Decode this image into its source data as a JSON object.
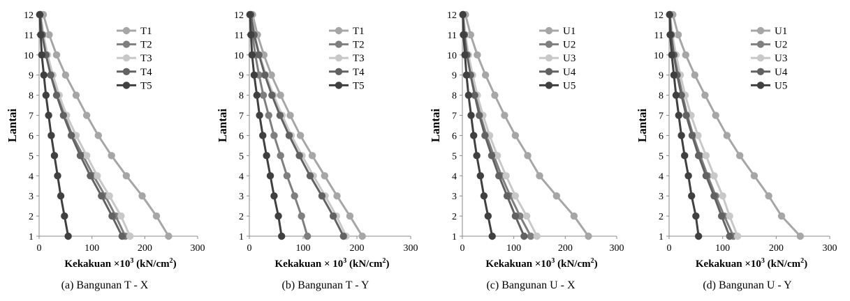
{
  "chart_data": [
    {
      "type": "line",
      "caption": "(a) Bangunan T - X",
      "ylabel": "Lantai",
      "xlabel": "Kekakuan ×10",
      "xlabel_exp": "3",
      "xlabel_unit": " (kN/cm",
      "xlabel_unit_exp": "2",
      "xlabel_end": ")",
      "xlim": [
        0,
        300
      ],
      "x_ticks": [
        "0",
        "100",
        "200",
        "300"
      ],
      "ylim": [
        1,
        12
      ],
      "y_ticks": [
        "1",
        "2",
        "3",
        "4",
        "5",
        "6",
        "7",
        "8",
        "9",
        "10",
        "11",
        "12"
      ],
      "legend_position": "top-right",
      "series": [
        {
          "name": "T1",
          "color": "#a6a6a6",
          "x": [
            245,
            222,
            195,
            165,
            137,
            112,
            90,
            70,
            50,
            33,
            19,
            8
          ],
          "y": [
            1,
            2,
            3,
            4,
            5,
            6,
            7,
            8,
            9,
            10,
            11,
            12
          ]
        },
        {
          "name": "T2",
          "color": "#7f7f7f",
          "x": [
            163,
            145,
            125,
            103,
            83,
            63,
            48,
            35,
            24,
            15,
            8,
            3
          ],
          "y": [
            1,
            2,
            3,
            4,
            5,
            6,
            7,
            8,
            9,
            10,
            11,
            12
          ]
        },
        {
          "name": "T3",
          "color": "#c8c8c8",
          "x": [
            172,
            155,
            133,
            110,
            90,
            70,
            52,
            38,
            26,
            16,
            8,
            3
          ],
          "y": [
            1,
            2,
            3,
            4,
            5,
            6,
            7,
            8,
            9,
            10,
            11,
            12
          ]
        },
        {
          "name": "T4",
          "color": "#626262",
          "x": [
            157,
            138,
            118,
            97,
            78,
            61,
            46,
            33,
            22,
            13,
            6,
            2
          ],
          "y": [
            1,
            2,
            3,
            4,
            5,
            6,
            7,
            8,
            9,
            10,
            11,
            12
          ]
        },
        {
          "name": "T5",
          "color": "#404040",
          "x": [
            55,
            48,
            41,
            35,
            29,
            23,
            18,
            13,
            9,
            5,
            3,
            1
          ],
          "y": [
            1,
            2,
            3,
            4,
            5,
            6,
            7,
            8,
            9,
            10,
            11,
            12
          ]
        }
      ]
    },
    {
      "type": "line",
      "caption": "(b) Bangunan T - Y",
      "ylabel": "Lantai",
      "xlabel": "Kekakuan × 10",
      "xlabel_exp": "3",
      "xlabel_unit": " (kN/cm",
      "xlabel_unit_exp": "2",
      "xlabel_end": ")",
      "xlim": [
        0,
        300
      ],
      "x_ticks": [
        "0",
        "100",
        "200",
        "300"
      ],
      "ylim": [
        1,
        12
      ],
      "y_ticks": [
        "1",
        "2",
        "3",
        "4",
        "5",
        "6",
        "7",
        "8",
        "9",
        "10",
        "11",
        "12"
      ],
      "legend_position": "top-right",
      "series": [
        {
          "name": "T1",
          "color": "#a6a6a6",
          "x": [
            210,
            187,
            163,
            140,
            117,
            95,
            76,
            58,
            41,
            27,
            15,
            6
          ],
          "y": [
            1,
            2,
            3,
            4,
            5,
            6,
            7,
            8,
            9,
            10,
            11,
            12
          ]
        },
        {
          "name": "T2",
          "color": "#7f7f7f",
          "x": [
            108,
            97,
            84,
            70,
            58,
            46,
            36,
            26,
            18,
            11,
            6,
            2
          ],
          "y": [
            1,
            2,
            3,
            4,
            5,
            6,
            7,
            8,
            9,
            10,
            11,
            12
          ]
        },
        {
          "name": "T3",
          "color": "#c8c8c8",
          "x": [
            180,
            162,
            141,
            119,
            98,
            78,
            61,
            45,
            31,
            19,
            10,
            4
          ],
          "y": [
            1,
            2,
            3,
            4,
            5,
            6,
            7,
            8,
            9,
            10,
            11,
            12
          ]
        },
        {
          "name": "T4",
          "color": "#626262",
          "x": [
            175,
            156,
            135,
            113,
            93,
            74,
            57,
            42,
            29,
            18,
            9,
            3
          ],
          "y": [
            1,
            2,
            3,
            4,
            5,
            6,
            7,
            8,
            9,
            10,
            11,
            12
          ]
        },
        {
          "name": "T5",
          "color": "#404040",
          "x": [
            60,
            54,
            46,
            39,
            32,
            25,
            19,
            14,
            9,
            5,
            3,
            1
          ],
          "y": [
            1,
            2,
            3,
            4,
            5,
            6,
            7,
            8,
            9,
            10,
            11,
            12
          ]
        }
      ]
    },
    {
      "type": "line",
      "caption": "(c) Bangunan U -  X",
      "ylabel": "Lantai",
      "xlabel": "Kekakuan ×10",
      "xlabel_exp": "3",
      "xlabel_unit": " (kN/cm",
      "xlabel_unit_exp": "2",
      "xlabel_end": ")",
      "xlim": [
        0,
        300
      ],
      "x_ticks": [
        "0",
        "100",
        "200",
        "300"
      ],
      "ylim": [
        1,
        12
      ],
      "y_ticks": [
        "1",
        "2",
        "3",
        "4",
        "5",
        "6",
        "7",
        "8",
        "9",
        "10",
        "11",
        "12"
      ],
      "legend_position": "top-right",
      "series": [
        {
          "name": "U1",
          "color": "#a6a6a6",
          "x": [
            245,
            217,
            183,
            150,
            127,
            103,
            82,
            63,
            45,
            29,
            16,
            6
          ],
          "y": [
            1,
            2,
            3,
            4,
            5,
            6,
            7,
            8,
            9,
            10,
            11,
            12
          ]
        },
        {
          "name": "U2",
          "color": "#7f7f7f",
          "x": [
            133,
            112,
            93,
            76,
            61,
            47,
            35,
            26,
            17,
            10,
            5,
            2
          ],
          "y": [
            1,
            2,
            3,
            4,
            5,
            6,
            7,
            8,
            9,
            10,
            11,
            12
          ]
        },
        {
          "name": "U3",
          "color": "#c8c8c8",
          "x": [
            145,
            125,
            103,
            85,
            68,
            53,
            40,
            29,
            20,
            12,
            6,
            2
          ],
          "y": [
            1,
            2,
            3,
            4,
            5,
            6,
            7,
            8,
            9,
            10,
            11,
            12
          ]
        },
        {
          "name": "U4",
          "color": "#626262",
          "x": [
            120,
            103,
            87,
            71,
            57,
            44,
            33,
            24,
            16,
            9,
            4,
            1
          ],
          "y": [
            1,
            2,
            3,
            4,
            5,
            6,
            7,
            8,
            9,
            10,
            11,
            12
          ]
        },
        {
          "name": "U5",
          "color": "#404040",
          "x": [
            58,
            50,
            42,
            35,
            28,
            22,
            17,
            12,
            8,
            5,
            2,
            1
          ],
          "y": [
            1,
            2,
            3,
            4,
            5,
            6,
            7,
            8,
            9,
            10,
            11,
            12
          ]
        }
      ]
    },
    {
      "type": "line",
      "caption": "(d) Bangunan U - Y",
      "ylabel": "Lantai",
      "xlabel": "Kekakuan ×10",
      "xlabel_exp": "3",
      "xlabel_unit": " (kN/cm",
      "xlabel_unit_exp": "2",
      "xlabel_end": ")",
      "xlim": [
        0,
        300
      ],
      "x_ticks": [
        "0",
        "100",
        "200",
        "300"
      ],
      "ylim": [
        1,
        12
      ],
      "y_ticks": [
        "1",
        "2",
        "3",
        "4",
        "5",
        "6",
        "7",
        "8",
        "9",
        "10",
        "11",
        "12"
      ],
      "legend_position": "top-right",
      "series": [
        {
          "name": "U1",
          "color": "#a6a6a6",
          "x": [
            245,
            210,
            186,
            159,
            132,
            108,
            87,
            67,
            48,
            31,
            17,
            7
          ],
          "y": [
            1,
            2,
            3,
            4,
            5,
            6,
            7,
            8,
            9,
            10,
            11,
            12
          ]
        },
        {
          "name": "U2",
          "color": "#7f7f7f",
          "x": [
            120,
            103,
            87,
            72,
            58,
            45,
            34,
            25,
            17,
            10,
            5,
            2
          ],
          "y": [
            1,
            2,
            3,
            4,
            5,
            6,
            7,
            8,
            9,
            10,
            11,
            12
          ]
        },
        {
          "name": "U3",
          "color": "#c8c8c8",
          "x": [
            128,
            113,
            100,
            84,
            69,
            54,
            41,
            30,
            21,
            13,
            6,
            2
          ],
          "y": [
            1,
            2,
            3,
            4,
            5,
            6,
            7,
            8,
            9,
            10,
            11,
            12
          ]
        },
        {
          "name": "U4",
          "color": "#626262",
          "x": [
            113,
            98,
            84,
            69,
            55,
            43,
            32,
            23,
            15,
            9,
            4,
            1
          ],
          "y": [
            1,
            2,
            3,
            4,
            5,
            6,
            7,
            8,
            9,
            10,
            11,
            12
          ]
        },
        {
          "name": "U5",
          "color": "#404040",
          "x": [
            55,
            50,
            42,
            36,
            29,
            23,
            18,
            13,
            9,
            5,
            2,
            1
          ],
          "y": [
            1,
            2,
            3,
            4,
            5,
            6,
            7,
            8,
            9,
            10,
            11,
            12
          ]
        }
      ]
    }
  ]
}
